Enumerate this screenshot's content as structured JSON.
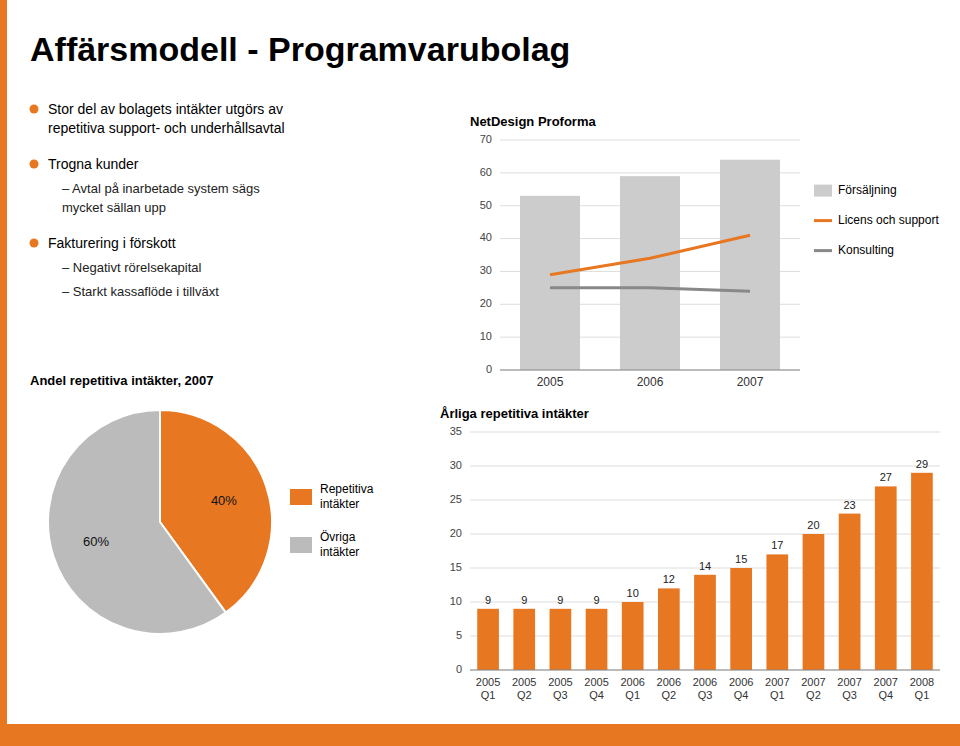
{
  "title": "Affärsmodell - Programvarubolag",
  "annotations": [
    [
      "Stor del av bolagets intäkter utgörs av\n  repetitiva support- och underhållsavtal"
    ],
    [
      "Trogna kunder",
      "– Avtal på inarbetade system sägs\n    mycket sällan upp"
    ],
    [
      "Fakturering i förskott",
      "– Negativt rörelsekapital",
      "– Starkt kassaflöde i tillväxt"
    ]
  ],
  "chart_data": [
    {
      "type": "bar",
      "title": "NetDesign Proforma",
      "categories": [
        "2005",
        "2006",
        "2007"
      ],
      "series": [
        {
          "name": "Försäljning",
          "type": "bar",
          "color": "#cccccc",
          "values": [
            53,
            59,
            64
          ]
        },
        {
          "name": "Licens och support",
          "type": "line",
          "color": "#E87722",
          "values": [
            29,
            34,
            41
          ]
        },
        {
          "name": "Konsulting",
          "type": "line",
          "color": "#888888",
          "values": [
            25,
            25,
            24
          ]
        }
      ],
      "ylim": [
        0,
        70
      ],
      "yticks": [
        0,
        10,
        20,
        30,
        40,
        50,
        60,
        70
      ],
      "grid": true,
      "legend": "right"
    },
    {
      "type": "pie",
      "title": "Andel repetitiva intäkter, 2007",
      "categories": [
        "Repetitiva\nintäkter",
        "Övriga\nintäkter"
      ],
      "values": [
        40,
        60
      ],
      "value_labels": [
        "40%",
        "60%"
      ],
      "colors": [
        "#E87722",
        "#bbbbbb"
      ],
      "data_labels": true,
      "legend": "right"
    },
    {
      "type": "bar",
      "title": "Årliga repetitiva intäkter",
      "categories": [
        "2005\nQ1",
        "2005\nQ2",
        "2005\nQ3",
        "2005\nQ4",
        "2006\nQ1",
        "2006\nQ2",
        "2006\nQ3",
        "2006\nQ4",
        "2007\nQ1",
        "2007\nQ2",
        "2007\nQ3",
        "2007\nQ4",
        "2008\nQ1"
      ],
      "values": [
        9,
        9,
        9,
        9,
        10,
        12,
        14,
        15,
        17,
        20,
        23,
        27,
        29
      ],
      "color": "#E87722",
      "ylim": [
        0,
        35
      ],
      "yticks": [
        0,
        5,
        10,
        15,
        20,
        25,
        30,
        35
      ],
      "grid": true,
      "data_labels": true
    }
  ]
}
